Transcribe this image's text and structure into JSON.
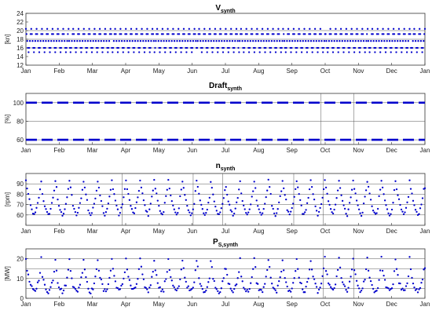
{
  "chart_data": [
    {
      "type": "scatter",
      "title_main": "V",
      "title_sub": "synth",
      "ylabel": "[kn]",
      "ylim": [
        12,
        24
      ],
      "yticks": [
        12,
        14,
        16,
        18,
        20,
        22,
        24
      ],
      "hlines": [
        16,
        18,
        20
      ],
      "vlines": [],
      "x_tick_labels": [
        "Jan",
        "Feb",
        "Mar",
        "Apr",
        "May",
        "Jun",
        "Jul",
        "Aug",
        "Sep",
        "Oct",
        "Nov",
        "Dec",
        "Jan"
      ],
      "x_range_days": [
        0,
        365
      ],
      "series": [
        {
          "color": "#0000cc",
          "style": "dots",
          "period_days": 4.8,
          "levels": [
            20.4,
            19.2,
            17.6,
            16.0,
            15.0,
            16.0,
            17.6,
            19.2
          ],
          "count": 600
        }
      ]
    },
    {
      "type": "scatter",
      "title_main": "Draft",
      "title_sub": "synth",
      "ylabel": "[%]",
      "ylim": [
        55,
        110
      ],
      "yticks": [
        60,
        80,
        100
      ],
      "hlines": [
        60,
        80,
        100
      ],
      "vlines": [
        270,
        300
      ],
      "x_tick_labels": [
        "Jan",
        "Feb",
        "Mar",
        "Apr",
        "May",
        "Jun",
        "Jul",
        "Aug",
        "Sep",
        "Oct",
        "Nov",
        "Dec",
        "Jan"
      ],
      "x_range_days": [
        0,
        365
      ],
      "series": [
        {
          "color": "#0000cc",
          "style": "dashes",
          "value": 100
        },
        {
          "color": "#0000cc",
          "style": "dashes",
          "value": 60
        }
      ]
    },
    {
      "type": "scatter",
      "title_main": "n",
      "title_sub": "synth",
      "ylabel": "[rpm]",
      "ylim": [
        50,
        100
      ],
      "yticks": [
        60,
        70,
        80,
        90
      ],
      "hlines": [
        60,
        70,
        80,
        90
      ],
      "vlines": [
        88,
        153,
        180,
        245,
        272
      ],
      "x_tick_labels": [
        "Jan",
        "Feb",
        "Mar",
        "Apr",
        "May",
        "Jun",
        "Jul",
        "Aug",
        "Sep",
        "Oct",
        "Nov",
        "Dec",
        "Jan"
      ],
      "x_range_days": [
        0,
        365
      ],
      "series": [
        {
          "color": "#0000cc",
          "style": "dots",
          "period_days": 13,
          "levels": [
            93,
            86,
            80,
            74,
            69,
            65,
            62,
            60,
            62,
            66,
            71,
            77,
            84
          ],
          "count": 340
        }
      ]
    },
    {
      "type": "scatter",
      "title_main": "P",
      "title_sub": "S,synth",
      "ylabel": "[MW]",
      "ylim": [
        0,
        25
      ],
      "yticks": [
        0,
        10,
        20
      ],
      "hlines": [
        5,
        10,
        15,
        20
      ],
      "vlines": [
        272,
        300
      ],
      "x_tick_labels": [
        "Jan",
        "Feb",
        "Mar",
        "Apr",
        "May",
        "Jun",
        "Jul",
        "Aug",
        "Sep",
        "Oct",
        "Nov",
        "Dec",
        "Jan"
      ],
      "x_range_days": [
        0,
        365
      ],
      "series": [
        {
          "color": "#0000cc",
          "style": "dots",
          "period_days": 13,
          "levels": [
            20,
            15,
            11,
            8.5,
            6.5,
            5,
            4,
            3.5,
            4,
            5.5,
            7.5,
            10,
            14
          ],
          "count": 340
        }
      ]
    }
  ]
}
